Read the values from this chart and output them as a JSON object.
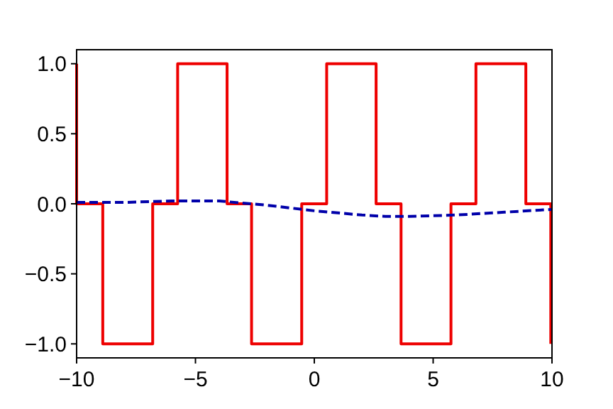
{
  "chart_data": {
    "type": "line",
    "xlim": [
      -10,
      10
    ],
    "ylim": [
      -1.1,
      1.1
    ],
    "xticks": [
      {
        "value": -10,
        "label": "−10"
      },
      {
        "value": -5,
        "label": "−5"
      },
      0,
      5,
      10
    ],
    "yticks": [
      {
        "value": -1,
        "label": "−1.0"
      },
      {
        "value": -0.5,
        "label": "−0.5"
      },
      {
        "value": 0,
        "label": "0.0"
      },
      0.5,
      {
        "value": 1,
        "label": "1.0"
      }
    ],
    "grid": false,
    "series": [
      {
        "color": "#ee0000",
        "line_style": "solid",
        "x": [
          -10,
          -10,
          -8.9,
          -8.9,
          -6.8,
          -6.8,
          -5.75,
          -5.75,
          -3.67,
          -3.67,
          -2.64,
          -2.64,
          -0.53,
          -0.53,
          0.52,
          0.52,
          2.6,
          2.6,
          3.65,
          3.65,
          5.75,
          5.75,
          6.8,
          6.8,
          8.9,
          8.9,
          9.95,
          9.95
        ],
        "values": [
          1,
          0,
          0,
          -1,
          -1,
          0,
          0,
          1,
          1,
          0,
          0,
          -1,
          -1,
          0,
          0,
          1,
          1,
          0,
          0,
          -1,
          -1,
          0,
          0,
          1,
          1,
          0,
          0,
          -1
        ]
      },
      {
        "color": "#0000aa",
        "line_style": "dashed",
        "x": [
          -10,
          -8,
          -6,
          -4,
          -2,
          0,
          2,
          3,
          4,
          6,
          8,
          10
        ],
        "values": [
          0.01,
          0.01,
          0.02,
          0.02,
          -0.01,
          -0.05,
          -0.08,
          -0.09,
          -0.09,
          -0.08,
          -0.06,
          -0.04
        ]
      }
    ]
  }
}
